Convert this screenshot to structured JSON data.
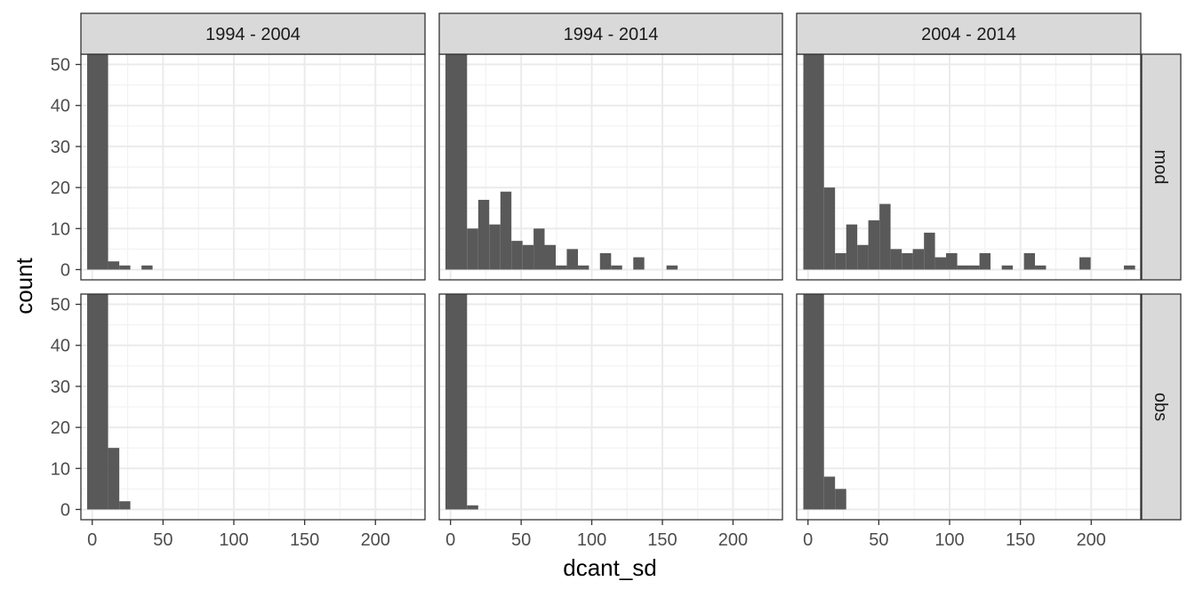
{
  "chart_data": {
    "type": "bar",
    "xlabel": "dcant_sd",
    "ylabel": "count",
    "xlim": [
      -8,
      235
    ],
    "ylim": [
      -2.5,
      52.5
    ],
    "x_ticks": [
      0,
      50,
      100,
      150,
      200
    ],
    "y_ticks": [
      0,
      10,
      20,
      30,
      40,
      50
    ],
    "grid": true,
    "legend": "none",
    "bar_color": "#595959",
    "bin_width": 7.85,
    "col_labels": [
      "1994 - 2004",
      "1994 - 2014",
      "2004 - 2014"
    ],
    "row_labels": [
      "mod",
      "obs"
    ],
    "panels": [
      {
        "col": "1994 - 2004",
        "row": "mod",
        "bins": [
          {
            "x0": -3.6,
            "x1": 11.2,
            "count": 52.5
          },
          {
            "x0": 11.2,
            "x1": 19.1,
            "count": 2
          },
          {
            "x0": 19.1,
            "x1": 26.9,
            "count": 1
          },
          {
            "x0": 34.8,
            "x1": 42.6,
            "count": 1
          }
        ]
      },
      {
        "col": "1994 - 2014",
        "row": "mod",
        "bins": [
          {
            "x0": -3.6,
            "x1": 11.7,
            "count": 52.5
          },
          {
            "x0": 11.7,
            "x1": 19.6,
            "count": 10
          },
          {
            "x0": 19.6,
            "x1": 27.4,
            "count": 17
          },
          {
            "x0": 27.4,
            "x1": 35.3,
            "count": 11
          },
          {
            "x0": 35.3,
            "x1": 43.1,
            "count": 19
          },
          {
            "x0": 43.1,
            "x1": 51.0,
            "count": 7
          },
          {
            "x0": 51.0,
            "x1": 58.8,
            "count": 6
          },
          {
            "x0": 58.8,
            "x1": 66.6,
            "count": 10
          },
          {
            "x0": 66.6,
            "x1": 74.5,
            "count": 6
          },
          {
            "x0": 74.5,
            "x1": 82.3,
            "count": 1
          },
          {
            "x0": 82.3,
            "x1": 90.2,
            "count": 5
          },
          {
            "x0": 90.2,
            "x1": 98.0,
            "count": 1
          },
          {
            "x0": 105.8,
            "x1": 113.7,
            "count": 4
          },
          {
            "x0": 113.7,
            "x1": 121.5,
            "count": 1
          },
          {
            "x0": 129.4,
            "x1": 137.2,
            "count": 3
          },
          {
            "x0": 152.9,
            "x1": 160.8,
            "count": 1
          }
        ]
      },
      {
        "col": "2004 - 2014",
        "row": "mod",
        "bins": [
          {
            "x0": -3.3,
            "x1": 11.3,
            "count": 52.5
          },
          {
            "x0": 11.3,
            "x1": 19.1,
            "count": 20
          },
          {
            "x0": 19.1,
            "x1": 27.0,
            "count": 4
          },
          {
            "x0": 27.0,
            "x1": 34.8,
            "count": 11
          },
          {
            "x0": 34.8,
            "x1": 42.6,
            "count": 6
          },
          {
            "x0": 42.6,
            "x1": 50.5,
            "count": 12
          },
          {
            "x0": 50.5,
            "x1": 58.3,
            "count": 16
          },
          {
            "x0": 58.3,
            "x1": 66.2,
            "count": 5
          },
          {
            "x0": 66.2,
            "x1": 74.0,
            "count": 4
          },
          {
            "x0": 74.0,
            "x1": 81.9,
            "count": 5
          },
          {
            "x0": 81.9,
            "x1": 89.7,
            "count": 9
          },
          {
            "x0": 89.7,
            "x1": 97.5,
            "count": 3
          },
          {
            "x0": 97.5,
            "x1": 105.4,
            "count": 4
          },
          {
            "x0": 105.4,
            "x1": 113.2,
            "count": 1
          },
          {
            "x0": 113.2,
            "x1": 121.1,
            "count": 1
          },
          {
            "x0": 121.1,
            "x1": 128.9,
            "count": 4
          },
          {
            "x0": 136.8,
            "x1": 144.6,
            "count": 1
          },
          {
            "x0": 152.5,
            "x1": 160.3,
            "count": 4
          },
          {
            "x0": 160.3,
            "x1": 168.1,
            "count": 1
          },
          {
            "x0": 191.7,
            "x1": 199.6,
            "count": 3
          },
          {
            "x0": 223.1,
            "x1": 231.0,
            "count": 1
          }
        ]
      },
      {
        "col": "1994 - 2004",
        "row": "obs",
        "bins": [
          {
            "x0": -3.6,
            "x1": 11.2,
            "count": 52.5
          },
          {
            "x0": 11.2,
            "x1": 19.1,
            "count": 15
          },
          {
            "x0": 19.1,
            "x1": 26.9,
            "count": 2
          }
        ]
      },
      {
        "col": "1994 - 2014",
        "row": "obs",
        "bins": [
          {
            "x0": -3.6,
            "x1": 11.7,
            "count": 52.5
          },
          {
            "x0": 11.7,
            "x1": 19.6,
            "count": 1
          }
        ]
      },
      {
        "col": "2004 - 2014",
        "row": "obs",
        "bins": [
          {
            "x0": -3.3,
            "x1": 11.3,
            "count": 52.5
          },
          {
            "x0": 11.3,
            "x1": 19.1,
            "count": 8
          },
          {
            "x0": 19.1,
            "x1": 27.0,
            "count": 5
          }
        ]
      }
    ]
  }
}
